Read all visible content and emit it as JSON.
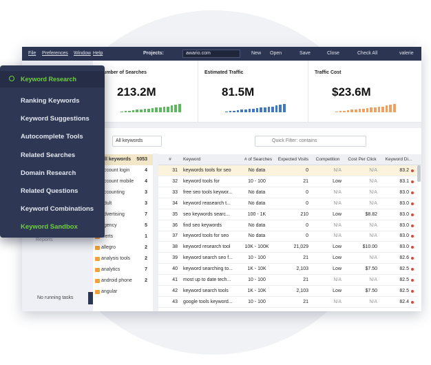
{
  "menu": {
    "items": [
      "File",
      "Preferences",
      "Window",
      "Help"
    ],
    "projects_label": "Projects:",
    "project": "awario.com",
    "buttons": [
      "New",
      "Open",
      "Save",
      "Close",
      "Check All"
    ],
    "user": "valerie"
  },
  "stats": [
    {
      "title": "Number of Searches",
      "value": "213.2M",
      "color": "#5cb85c",
      "bars": [
        1,
        1.5,
        2,
        2.5,
        3,
        3.5,
        4,
        4.5,
        5,
        5.5,
        6,
        6.5,
        7,
        8,
        9,
        10
      ]
    },
    {
      "title": "Estimated Traffic",
      "value": "81.5M",
      "color": "#3f79c4",
      "bars": [
        1,
        1.5,
        2,
        2.5,
        3,
        3.5,
        4,
        4.5,
        5,
        5.5,
        6,
        6.5,
        7,
        8,
        9,
        10
      ]
    },
    {
      "title": "Traffic Cost",
      "value": "$23.6M",
      "color": "#f0a060",
      "bars": [
        1,
        1.5,
        2,
        2.5,
        3,
        3.5,
        4,
        4.5,
        5,
        5.5,
        6,
        6.5,
        7,
        8,
        9,
        10
      ]
    }
  ],
  "popup": {
    "title": "Keyword Research",
    "items": [
      "Ranking Keywords",
      "Keyword Suggestions",
      "Autocomplete Tools",
      "Related Searches",
      "Domain Research",
      "Related Questions",
      "Keyword Combinations",
      "Keyword Sandbox"
    ],
    "active": 7
  },
  "sidebar": {
    "reports": "Reports",
    "tasks": "No running tasks"
  },
  "toolbar": {
    "dropdown": "All keywords",
    "filter": "Quick Filter: contains"
  },
  "groups": [
    {
      "name": "All keywords",
      "count": 5053
    },
    {
      "name": "account login",
      "count": 4
    },
    {
      "name": "account mobile",
      "count": 4
    },
    {
      "name": "accounting",
      "count": 3
    },
    {
      "name": "adult",
      "count": 3
    },
    {
      "name": "advertising",
      "count": 7
    },
    {
      "name": "agency",
      "count": 5
    },
    {
      "name": "alerts",
      "count": 1
    },
    {
      "name": "allegro",
      "count": 2
    },
    {
      "name": "analysis tools",
      "count": 2
    },
    {
      "name": "analytics",
      "count": 7
    },
    {
      "name": "android phone",
      "count": 2
    },
    {
      "name": "angular"
    }
  ],
  "table": {
    "headers": [
      "#",
      "Keyword",
      "# of Searches",
      "Expected Visits",
      "Competition",
      "Cost Per Click",
      "Keyword Di..."
    ],
    "rows": [
      [
        31,
        "keywords tools for seo",
        "No data",
        0,
        "N/A",
        "N/A",
        "83.2"
      ],
      [
        32,
        "keyword tools for",
        "10 - 100",
        21,
        "Low",
        "N/A",
        "83.1"
      ],
      [
        33,
        "free seo tools keywor...",
        "No data",
        0,
        "N/A",
        "N/A",
        "83.0"
      ],
      [
        34,
        "keyword reasearch t...",
        "No data",
        0,
        "N/A",
        "N/A",
        "83.0"
      ],
      [
        35,
        "seo keywords searc...",
        "100 - 1K",
        210,
        "Low",
        "$8.82",
        "83.0"
      ],
      [
        36,
        "find seo keywords",
        "No data",
        0,
        "N/A",
        "N/A",
        "83.0"
      ],
      [
        37,
        "keyword tools for seo",
        "No data",
        0,
        "N/A",
        "N/A",
        "83.0"
      ],
      [
        38,
        "keyword research tool",
        "10K - 100K",
        "21,029",
        "Low",
        "$10.00",
        "83.0"
      ],
      [
        39,
        "keyword search seo f...",
        "10 - 100",
        21,
        "Low",
        "N/A",
        "82.6"
      ],
      [
        40,
        "keyword searching to...",
        "1K - 10K",
        "2,103",
        "Low",
        "$7.50",
        "82.5"
      ],
      [
        41,
        "most up to date tech...",
        "10 - 100",
        21,
        "N/A",
        "N/A",
        "82.5"
      ],
      [
        42,
        "keyword search tools",
        "1K - 10K",
        "2,103",
        "Low",
        "$7.50",
        "82.5"
      ],
      [
        43,
        "google tools keyword...",
        "10 - 100",
        21,
        "N/A",
        "N/A",
        "82.4"
      ]
    ]
  }
}
